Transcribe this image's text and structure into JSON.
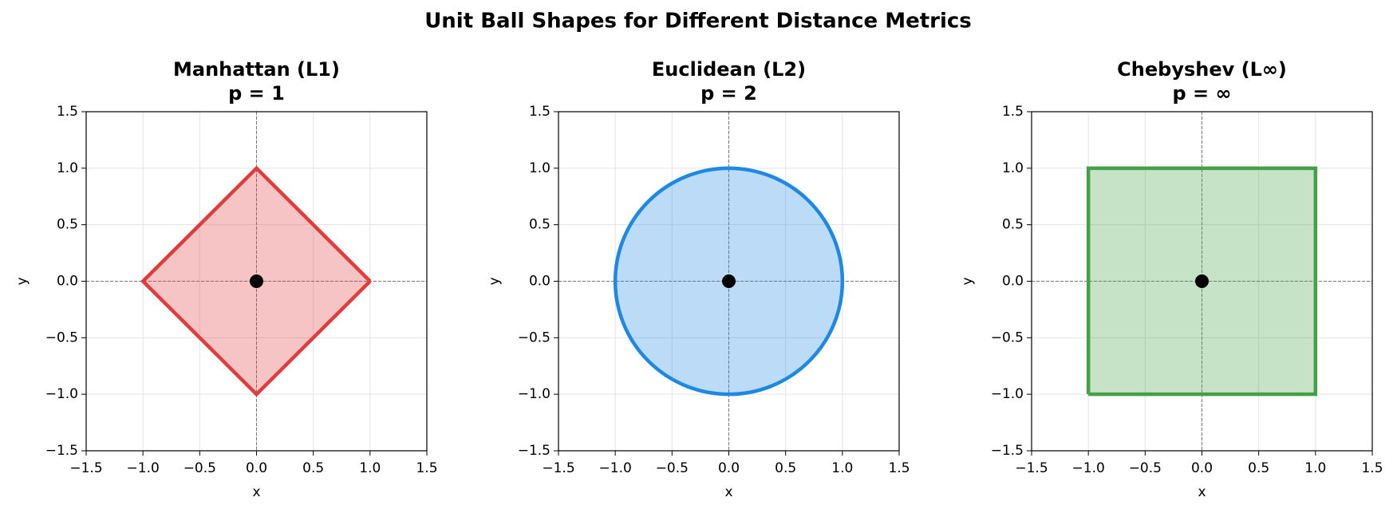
{
  "title": "Unit Ball Shapes for Different Distance Metrics",
  "chart_data": [
    {
      "type": "polygon",
      "title": "Manhattan (L1)",
      "subtitle": "p = 1",
      "xlabel": "x",
      "ylabel": "y",
      "xlim": [
        -1.5,
        1.5
      ],
      "ylim": [
        -1.5,
        1.5
      ],
      "xticks": [
        {
          "value": -1.5,
          "label": "−1.5"
        },
        {
          "value": -1,
          "label": "−1.0"
        },
        {
          "value": -0.5,
          "label": "−0.5"
        },
        {
          "value": 0,
          "label": "0.0"
        },
        0.5,
        {
          "value": 1,
          "label": "1.0"
        },
        1.5
      ],
      "yticks": [
        {
          "value": -1.5,
          "label": "−1.5"
        },
        {
          "value": -1,
          "label": "−1.0"
        },
        {
          "value": -0.5,
          "label": "−0.5"
        },
        {
          "value": 0,
          "label": "0.0"
        },
        0.5,
        {
          "value": 1,
          "label": "1.0"
        },
        1.5
      ],
      "grid": true,
      "reference_lines": {
        "x": 0,
        "y": 0
      },
      "shape": {
        "color": "#e03c3c",
        "x": [
          1,
          0,
          -1,
          0,
          1
        ],
        "y": [
          0,
          1,
          0,
          -1,
          0
        ]
      },
      "points": {
        "color": "#000000",
        "x": [
          0
        ],
        "y": [
          0
        ]
      }
    },
    {
      "type": "circle",
      "title": "Euclidean (L2)",
      "subtitle": "p = 2",
      "xlabel": "x",
      "ylabel": "y",
      "xlim": [
        -1.5,
        1.5
      ],
      "ylim": [
        -1.5,
        1.5
      ],
      "xticks": [
        {
          "value": -1.5,
          "label": "−1.5"
        },
        {
          "value": -1,
          "label": "−1.0"
        },
        {
          "value": -0.5,
          "label": "−0.5"
        },
        {
          "value": 0,
          "label": "0.0"
        },
        0.5,
        {
          "value": 1,
          "label": "1.0"
        },
        1.5
      ],
      "yticks": [
        {
          "value": -1.5,
          "label": "−1.5"
        },
        {
          "value": -1,
          "label": "−1.0"
        },
        {
          "value": -0.5,
          "label": "−0.5"
        },
        {
          "value": 0,
          "label": "0.0"
        },
        0.5,
        {
          "value": 1,
          "label": "1.0"
        },
        1.5
      ],
      "grid": true,
      "reference_lines": {
        "x": 0,
        "y": 0
      },
      "shape": {
        "color": "#1e88e5",
        "center_x": 0,
        "center_y": 0,
        "radius": 1
      },
      "points": {
        "color": "#000000",
        "x": [
          0
        ],
        "y": [
          0
        ]
      }
    },
    {
      "type": "polygon",
      "title": "Chebyshev (L∞)",
      "subtitle": "p = ∞",
      "xlabel": "x",
      "ylabel": "y",
      "xlim": [
        -1.5,
        1.5
      ],
      "ylim": [
        -1.5,
        1.5
      ],
      "xticks": [
        {
          "value": -1.5,
          "label": "−1.5"
        },
        {
          "value": -1,
          "label": "−1.0"
        },
        {
          "value": -0.5,
          "label": "−0.5"
        },
        {
          "value": 0,
          "label": "0.0"
        },
        0.5,
        {
          "value": 1,
          "label": "1.0"
        },
        1.5
      ],
      "yticks": [
        {
          "value": -1.5,
          "label": "−1.5"
        },
        {
          "value": -1,
          "label": "−1.0"
        },
        {
          "value": -0.5,
          "label": "−0.5"
        },
        {
          "value": 0,
          "label": "0.0"
        },
        0.5,
        {
          "value": 1,
          "label": "1.0"
        },
        1.5
      ],
      "grid": true,
      "reference_lines": {
        "x": 0,
        "y": 0
      },
      "shape": {
        "color": "#43a047",
        "x": [
          -1,
          1,
          1,
          -1,
          -1
        ],
        "y": [
          -1,
          -1,
          1,
          1,
          -1
        ]
      },
      "points": {
        "color": "#000000",
        "x": [
          0
        ],
        "y": [
          0
        ]
      }
    }
  ]
}
